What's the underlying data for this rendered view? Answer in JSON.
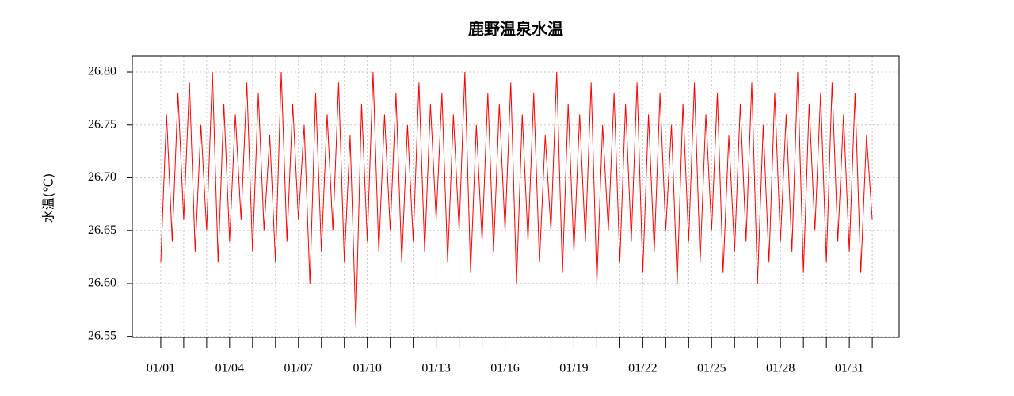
{
  "chart_data": {
    "type": "line",
    "title": "鹿野温泉水温",
    "ylabel": "水温(℃)",
    "color": "#ff0000",
    "grid": true,
    "xlim": [
      -1.24,
      32.17
    ],
    "ylim": [
      26.549,
      26.815
    ],
    "yticks": [
      {
        "value": 26.55,
        "label": "26.55"
      },
      {
        "value": 26.6,
        "label": "26.60"
      },
      26.65,
      {
        "value": 26.7,
        "label": "26.70"
      },
      26.75,
      {
        "value": 26.8,
        "label": "26.80"
      }
    ],
    "xticks": [
      {
        "value": 0,
        "label": "01/01"
      },
      {
        "value": 3,
        "label": "01/04"
      },
      {
        "value": 6,
        "label": "01/07"
      },
      {
        "value": 9,
        "label": "01/10"
      },
      {
        "value": 12,
        "label": "01/13"
      },
      {
        "value": 15,
        "label": "01/16"
      },
      {
        "value": 18,
        "label": "01/19"
      },
      {
        "value": 21,
        "label": "01/22"
      },
      {
        "value": 24,
        "label": "01/25"
      },
      {
        "value": 27,
        "label": "01/28"
      },
      {
        "value": 30,
        "label": "01/31"
      }
    ],
    "xminorticks": [
      0,
      1,
      2,
      3,
      4,
      5,
      6,
      7,
      8,
      9,
      10,
      11,
      12,
      13,
      14,
      15,
      16,
      17,
      18,
      19,
      20,
      21,
      22,
      23,
      24,
      25,
      26,
      27,
      28,
      29,
      30,
      31
    ],
    "x": [
      0,
      0.25,
      0.5,
      0.75,
      1,
      1.25,
      1.5,
      1.75,
      2,
      2.25,
      2.5,
      2.75,
      3,
      3.25,
      3.5,
      3.75,
      4,
      4.25,
      4.5,
      4.75,
      5,
      5.25,
      5.5,
      5.75,
      6,
      6.25,
      6.5,
      6.75,
      7,
      7.25,
      7.5,
      7.75,
      8,
      8.25,
      8.5,
      8.75,
      9,
      9.25,
      9.5,
      9.75,
      10,
      10.25,
      10.5,
      10.75,
      11,
      11.25,
      11.5,
      11.75,
      12,
      12.25,
      12.5,
      12.75,
      13,
      13.25,
      13.5,
      13.75,
      14,
      14.25,
      14.5,
      14.75,
      15,
      15.25,
      15.5,
      15.75,
      16,
      16.25,
      16.5,
      16.75,
      17,
      17.25,
      17.5,
      17.75,
      18,
      18.25,
      18.5,
      18.75,
      19,
      19.25,
      19.5,
      19.75,
      20,
      20.25,
      20.5,
      20.75,
      21,
      21.25,
      21.5,
      21.75,
      22,
      22.25,
      22.5,
      22.75,
      23,
      23.25,
      23.5,
      23.75,
      24,
      24.25,
      24.5,
      24.75,
      25,
      25.25,
      25.5,
      25.75,
      26,
      26.25,
      26.5,
      26.75,
      27,
      27.25,
      27.5,
      27.75,
      28,
      28.25,
      28.5,
      28.75,
      29,
      29.25,
      29.5,
      29.75,
      30,
      30.25,
      30.5,
      30.75,
      31
    ],
    "values": [
      26.62,
      26.76,
      26.64,
      26.78,
      26.66,
      26.79,
      26.63,
      26.75,
      26.65,
      26.8,
      26.62,
      26.77,
      26.64,
      26.76,
      26.66,
      26.79,
      26.63,
      26.78,
      26.65,
      26.74,
      26.62,
      26.8,
      26.64,
      26.77,
      26.66,
      26.75,
      26.6,
      26.78,
      26.63,
      26.76,
      26.65,
      26.79,
      26.62,
      26.74,
      26.56,
      26.77,
      26.64,
      26.8,
      26.63,
      26.76,
      26.65,
      26.78,
      26.62,
      26.75,
      26.64,
      26.79,
      26.63,
      26.77,
      26.66,
      26.78,
      26.62,
      26.76,
      26.65,
      26.8,
      26.61,
      26.75,
      26.64,
      26.78,
      26.63,
      26.77,
      26.65,
      26.79,
      26.6,
      26.76,
      26.64,
      26.78,
      26.62,
      26.74,
      26.65,
      26.8,
      26.61,
      26.77,
      26.63,
      26.76,
      26.64,
      26.79,
      26.6,
      26.75,
      26.65,
      26.78,
      26.62,
      26.77,
      26.64,
      26.79,
      26.61,
      26.76,
      26.63,
      26.78,
      26.65,
      26.75,
      26.6,
      26.77,
      26.64,
      26.79,
      26.62,
      26.76,
      26.65,
      26.78,
      26.61,
      26.74,
      26.63,
      26.77,
      26.64,
      26.79,
      26.6,
      26.75,
      26.62,
      26.78,
      26.64,
      26.76,
      26.63,
      26.8,
      26.61,
      26.77,
      26.65,
      26.78,
      26.62,
      26.79,
      26.64,
      26.76,
      26.63,
      26.78,
      26.61,
      26.74,
      26.66
    ]
  }
}
